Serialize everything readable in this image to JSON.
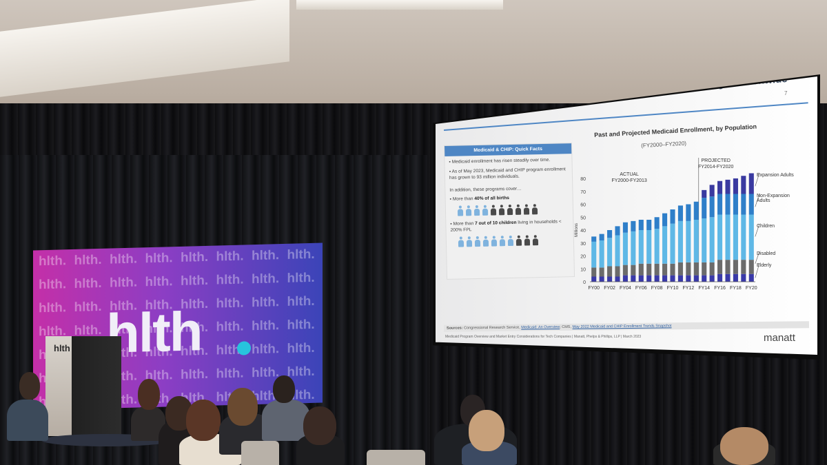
{
  "scene": {
    "backdrop_logo": "hlth",
    "backdrop_pattern_word": "hlth.",
    "podium_logo": "hlth"
  },
  "slide": {
    "title": "Medicaid is the Single Largest Source of Health Coverage Nationwide",
    "page_number": "7",
    "quick_facts": {
      "header": "Medicaid & CHIP: Quick Facts",
      "bullet_1": "Medicaid enrollment has risen steadily over time.",
      "bullet_2": "As of May 2023, Medicaid and CHIP program enrollment has grown to 93 million individuals.",
      "intro": "In addition, these programs cover…",
      "births_prefix": "More than ",
      "births_bold": "40% of all births",
      "children_prefix": "More than ",
      "children_bold": "7 out of 10 children",
      "children_suffix": " living in households < 200% FPL"
    },
    "sources_label": "Sources:",
    "sources_text": " Congressional Research Service, ",
    "sources_link_1": "Medicaid: An Overview",
    "sources_mid": "; CMS, ",
    "sources_link_2": "May 2022 Medicaid and CHIP Enrollment Trends Snapshot",
    "footer": "Medicaid Program Overview and Market Entry Considerations for Tech Companies | Manatt, Phelps & Phillips, LLP | March 2023",
    "brand": "manatt"
  },
  "chart_data": {
    "type": "bar",
    "stacked": true,
    "title": "Past and Projected Medicaid Enrollment, by Population",
    "subtitle": "(FY2000–FY2020)",
    "ylabel": "Millions",
    "ylim": [
      0,
      80
    ],
    "yticks": [
      0,
      10,
      20,
      30,
      40,
      50,
      60,
      70,
      80
    ],
    "period_labels": {
      "actual": "ACTUAL",
      "actual_range": "FY2000-FY2013",
      "projected": "PROJECTED",
      "projected_range": "FY2014-FY2020"
    },
    "categories": [
      "FY00",
      "FY01",
      "FY02",
      "FY03",
      "FY04",
      "FY05",
      "FY06",
      "FY07",
      "FY08",
      "FY09",
      "FY10",
      "FY11",
      "FY12",
      "FY13",
      "FY14",
      "FY15",
      "FY16",
      "FY17",
      "FY18",
      "FY19",
      "FY20"
    ],
    "tick_labels": [
      "FY00",
      "FY02",
      "FY04",
      "FY06",
      "FY08",
      "FY10",
      "FY12",
      "FY14",
      "FY16",
      "FY18",
      "FY20"
    ],
    "series": [
      {
        "name": "Elderly",
        "color": "#3a3aa8",
        "values": [
          4,
          4,
          4,
          4,
          5,
          5,
          5,
          5,
          5,
          5,
          5,
          5,
          5,
          5,
          5,
          5,
          6,
          6,
          6,
          6,
          6
        ]
      },
      {
        "name": "Disabled",
        "color": "#6b6b6b",
        "values": [
          7,
          7,
          8,
          8,
          8,
          8,
          9,
          9,
          9,
          9,
          9,
          10,
          10,
          10,
          10,
          10,
          11,
          11,
          11,
          11,
          11
        ]
      },
      {
        "name": "Children",
        "color": "#5fb8e6",
        "values": [
          20,
          21,
          22,
          24,
          25,
          26,
          26,
          26,
          27,
          29,
          31,
          32,
          32,
          33,
          34,
          35,
          35,
          35,
          35,
          35,
          35
        ]
      },
      {
        "name": "Non-Expansion Adults",
        "color": "#2f7fc9",
        "values": [
          4,
          5,
          6,
          7,
          8,
          8,
          8,
          8,
          9,
          10,
          11,
          12,
          13,
          14,
          16,
          16,
          16,
          16,
          16,
          16,
          16
        ]
      },
      {
        "name": "Expansion Adults",
        "color": "#3a3aa0",
        "values": [
          0,
          0,
          0,
          0,
          0,
          0,
          0,
          0,
          0,
          0,
          0,
          0,
          0,
          0,
          6,
          9,
          10,
          11,
          12,
          14,
          16
        ]
      }
    ],
    "legend": [
      "Expansion Adults",
      "Non-Expansion Adults",
      "Children",
      "Disabled",
      "Elderly"
    ]
  }
}
